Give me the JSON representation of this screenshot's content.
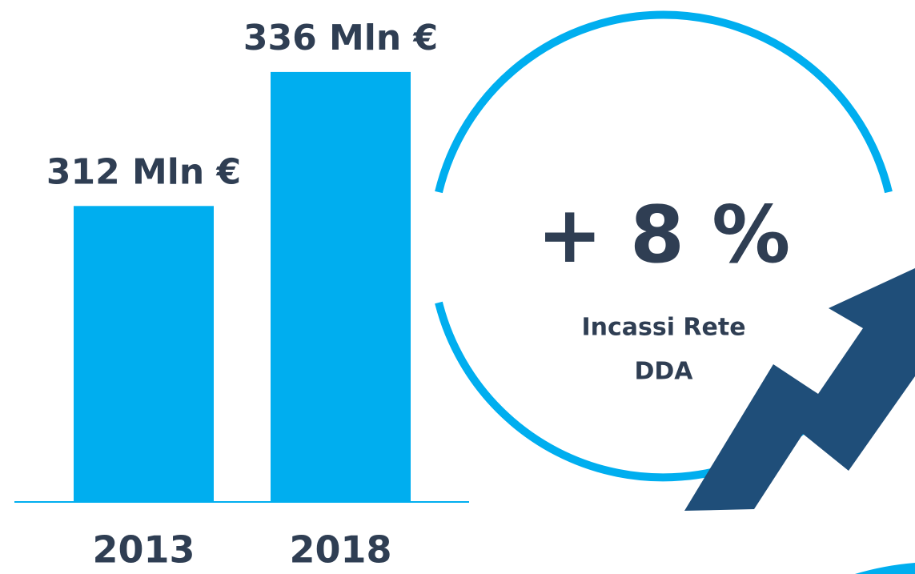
{
  "chart_data": {
    "type": "bar",
    "categories": [
      "2013",
      "2018"
    ],
    "values": [
      312,
      336
    ],
    "value_labels": [
      "312 Mln €",
      "336 Mln €"
    ],
    "color": "#00aeef",
    "ylim": [
      259,
      340
    ],
    "annotations": [
      "+ 8 %",
      "Incassi Rete",
      "DDA"
    ]
  }
}
